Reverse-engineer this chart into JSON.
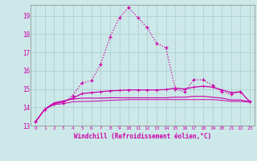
{
  "xlabel": "Windchill (Refroidissement éolien,°C)",
  "bg_color": "#cce8e8",
  "grid_color": "#aacccc",
  "line_color": "#cc00aa",
  "xmin": -0.5,
  "xmax": 23.5,
  "ymin": 13.0,
  "ymax": 19.6,
  "yticks": [
    13,
    14,
    15,
    16,
    17,
    18,
    19
  ],
  "xtick_labels": [
    "0",
    "1",
    "2",
    "3",
    "4",
    "5",
    "6",
    "7",
    "8",
    "9",
    "10",
    "11",
    "12",
    "13",
    "14",
    "15",
    "16",
    "17",
    "18",
    "19",
    "20",
    "21",
    "22",
    "23"
  ],
  "line1_x": [
    0,
    1,
    2,
    3,
    4,
    5,
    6,
    7,
    8,
    9,
    10,
    11,
    12,
    13,
    14,
    15,
    16,
    17,
    18,
    19,
    20,
    21,
    22,
    23
  ],
  "line1_y": [
    13.2,
    13.9,
    14.2,
    14.25,
    14.65,
    15.35,
    15.45,
    16.35,
    17.85,
    18.9,
    19.45,
    18.9,
    18.35,
    17.5,
    17.25,
    15.0,
    14.85,
    15.5,
    15.5,
    15.2,
    14.85,
    14.7,
    14.85,
    14.3
  ],
  "line2_x": [
    0,
    1,
    2,
    3,
    4,
    5,
    6,
    7,
    8,
    9,
    10,
    11,
    12,
    13,
    14,
    15,
    16,
    17,
    18,
    19,
    20,
    21,
    22,
    23
  ],
  "line2_y": [
    13.2,
    13.9,
    14.2,
    14.3,
    14.5,
    14.75,
    14.8,
    14.85,
    14.9,
    14.92,
    14.95,
    14.95,
    14.95,
    14.95,
    14.97,
    15.05,
    15.0,
    15.1,
    15.15,
    15.1,
    14.95,
    14.8,
    14.85,
    14.3
  ],
  "line3_x": [
    0,
    1,
    2,
    3,
    4,
    5,
    6,
    7,
    8,
    9,
    10,
    11,
    12,
    13,
    14,
    15,
    16,
    17,
    18,
    19,
    20,
    21,
    22,
    23
  ],
  "line3_y": [
    13.2,
    13.9,
    14.25,
    14.35,
    14.45,
    14.5,
    14.5,
    14.5,
    14.52,
    14.52,
    14.52,
    14.52,
    14.52,
    14.52,
    14.52,
    14.55,
    14.55,
    14.6,
    14.6,
    14.55,
    14.5,
    14.4,
    14.4,
    14.3
  ],
  "line4_x": [
    0,
    1,
    2,
    3,
    4,
    5,
    6,
    7,
    8,
    9,
    10,
    11,
    12,
    13,
    14,
    15,
    16,
    17,
    18,
    19,
    20,
    21,
    22,
    23
  ],
  "line4_y": [
    13.2,
    13.9,
    14.15,
    14.2,
    14.3,
    14.32,
    14.33,
    14.35,
    14.38,
    14.4,
    14.42,
    14.42,
    14.42,
    14.42,
    14.42,
    14.42,
    14.42,
    14.42,
    14.42,
    14.42,
    14.38,
    14.32,
    14.32,
    14.28
  ]
}
